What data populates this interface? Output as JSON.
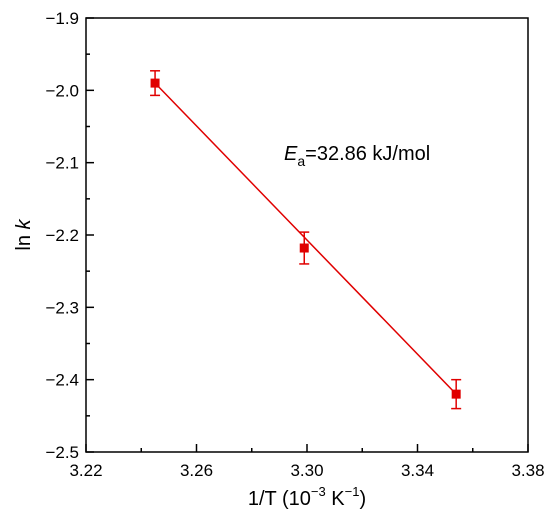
{
  "chart_data": {
    "type": "scatter",
    "title": "",
    "xlabel": {
      "main": "1/T (10",
      "exp": "−3",
      "unit_main": " K",
      "unit_exp": "−1",
      "close": ")"
    },
    "ylabel": {
      "main": "ln ",
      "var": "k"
    },
    "xlim": [
      3.22,
      3.38
    ],
    "ylim": [
      -2.5,
      -1.9
    ],
    "x_ticks": [
      3.22,
      3.26,
      3.3,
      3.34,
      3.38
    ],
    "x_tick_labels": [
      "3.22",
      "3.26",
      "3.30",
      "3.34",
      "3.38"
    ],
    "y_ticks": [
      -2.5,
      -2.4,
      -2.3,
      -2.2,
      -2.1,
      -2.0,
      -1.9
    ],
    "y_tick_labels": [
      "−2.5",
      "−2.4",
      "−2.3",
      "−2.2",
      "−2.1",
      "−2.0",
      "−1.9"
    ],
    "grid": false,
    "series": [
      {
        "points": [
          {
            "x": 3.245,
            "y": -1.99,
            "err": 0.017
          },
          {
            "x": 3.299,
            "y": -2.218,
            "err": 0.022
          },
          {
            "x": 3.354,
            "y": -2.42,
            "err": 0.02
          }
        ],
        "color": "#e00000",
        "marker": "square"
      }
    ],
    "fit_line": {
      "x": [
        3.245,
        3.354
      ],
      "y": [
        -1.99,
        -2.42
      ],
      "color": "#e00000"
    },
    "annotation": {
      "symbol": "E",
      "subscript": "a",
      "text": "=32.86 kJ/mol"
    }
  }
}
